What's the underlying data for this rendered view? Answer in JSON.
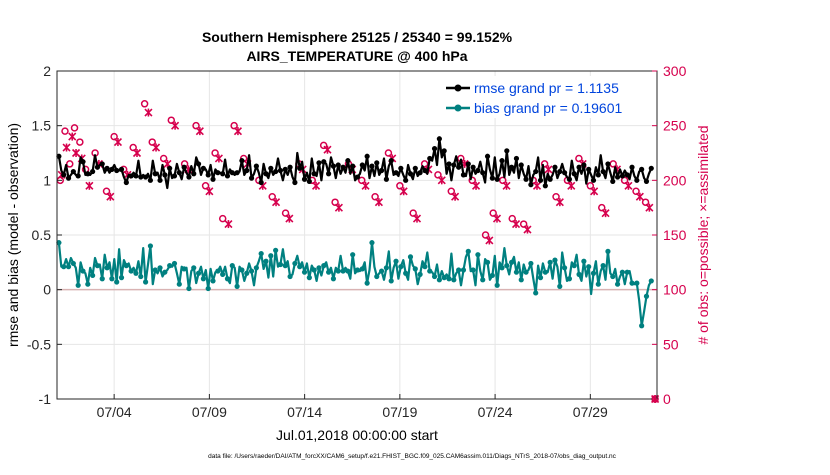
{
  "chart_data": {
    "type": "line",
    "title": "Southern Hemisphere 25125 / 25340 = 99.152%",
    "subtitle": "AIRS_TEMPERATURE @ 400 hPa",
    "xlabel": "Jul.01,2018 00:00:00 start",
    "ylabel_left": "rmse and bias (model - observation)",
    "ylabel_right": "# of obs: o=possible; ×=assimilated",
    "footer": "data file: /Users/raeder/DAI/ATM_forcXX/CAM6_setup/f.e21.FHIST_BGC.f09_025.CAM6assim.011/Diags_NTrS_2018-07/obs_diag_output.nc",
    "x_range": [
      0,
      31.5
    ],
    "x_ticks": [
      {
        "x": 3,
        "label": "07/04"
      },
      {
        "x": 8,
        "label": "07/09"
      },
      {
        "x": 13,
        "label": "07/14"
      },
      {
        "x": 18,
        "label": "07/19"
      },
      {
        "x": 23,
        "label": "07/24"
      },
      {
        "x": 28,
        "label": "07/29"
      }
    ],
    "yleft_range": [
      -1,
      2
    ],
    "yleft_ticks": [
      "-1",
      "-0.5",
      "0",
      "0.5",
      "1",
      "1.5",
      "2"
    ],
    "yright_range": [
      0,
      300
    ],
    "yright_ticks": [
      "0",
      "50",
      "100",
      "150",
      "200",
      "250",
      "300"
    ],
    "grid": true,
    "legend_position": "top-right",
    "colors": {
      "rmse": "#000000",
      "bias": "#008080",
      "obs": "#d6004d",
      "zero_line": "#d9b3b3",
      "grid": "#e6e6e6",
      "legend_text": "#0044dd"
    },
    "series": [
      {
        "name": "rmse grand pr = 1.1135",
        "axis": "left",
        "values": [
          1.22,
          1.09,
          1.05,
          1.14,
          1.02,
          1.05,
          1.08,
          1.05,
          1.04,
          1.21,
          1.17,
          1.05,
          1.06,
          1.05,
          1.08,
          1.23,
          1.12,
          1.14,
          1.15,
          1.07,
          1.11,
          1.07,
          1.1,
          1.14,
          1.09,
          1.09,
          1.1,
          1.03,
          0.98,
          1.05,
          1.04,
          1.07,
          1.04,
          1.18,
          1.03,
          1.05,
          1.03,
          1.06,
          1.0,
          1.18,
          1.06,
          1.07,
          1.0,
          1.14,
          1.05,
          0.93,
          1.11,
          1.02,
          1.04,
          1.15,
          1.07,
          1.01,
          1.12,
          1.07,
          1.03,
          1.13,
          1.06,
          1.21,
          1.15,
          1.05,
          1.11,
          1.1,
          1.05,
          1.14,
          1.01,
          1.1,
          1.07,
          1.07,
          1.06,
          1.19,
          1.04,
          1.1,
          1.07,
          1.05,
          1.07,
          1.08,
          1.18,
          1.05,
          1.09,
          1.23,
          1.02,
          1.06,
          1.13,
          1.07,
          0.98,
          1.15,
          1.06,
          1.02,
          1.11,
          1.05,
          1.08,
          1.2,
          1.09,
          1.0,
          1.1,
          1.05,
          1.12,
          1.03,
          0.98,
          1.25,
          1.11,
          1.17,
          1.01,
          1.07,
          0.99,
          1.2,
          1.06,
          1.04,
          1.16,
          1.0,
          1.17,
          1.15,
          1.06,
          1.21,
          1.13,
          1.02,
          1.14,
          1.06,
          1.12,
          1.07,
          1.18,
          1.06,
          1.13,
          1.0,
          1.03,
          1.06,
          1.14,
          1.09,
          1.22,
          1.02,
          1.13,
          1.04,
          1.16,
          1.05,
          1.09,
          1.2,
          1.01,
          1.13,
          1.18,
          1.05,
          1.07,
          1.04,
          1.11,
          1.05,
          1.0,
          1.14,
          1.06,
          1.01,
          1.11,
          1.04,
          1.07,
          1.13,
          1.09,
          1.06,
          1.2,
          1.18,
          1.29,
          1.14,
          1.38,
          1.21,
          1.27,
          1.06,
          1.15,
          1.0,
          1.14,
          1.22,
          1.12,
          1.19,
          1.05,
          1.04,
          1.15,
          1.01,
          1.12,
          1.06,
          1.09,
          1.17,
          1.07,
          0.98,
          1.22,
          1.1,
          1.02,
          1.21,
          1.01,
          1.06,
          1.18,
          1.03,
          1.27,
          1.05,
          1.12,
          1.07,
          1.2,
          1.02,
          1.14,
          1.06,
          1.01,
          1.13,
          0.96,
          1.05,
          1.08,
          1.21,
          1.0,
          1.14,
          0.95,
          1.06,
          1.01,
          1.05,
          1.12,
          1.02,
          1.08,
          1.15,
          1.07,
          1.03,
          1.01,
          1.18,
          1.06,
          1.0,
          1.12,
          1.06,
          1.14,
          0.97,
          1.1,
          1.05,
          1.0,
          1.12,
          1.05,
          1.23,
          1.08,
          1.02,
          1.15,
          1.07,
          0.99,
          1.12,
          1.03,
          1.1,
          1.04,
          1.09,
          1.05,
          1.01,
          1.12,
          1.04,
          1.0,
          1.08,
          1.1,
          1.02,
          0.99,
          1.06,
          1.11
        ]
      },
      {
        "name": "bias grand pr = 0.19601",
        "axis": "left",
        "values": [
          0.43,
          0.21,
          0.21,
          0.28,
          0.21,
          0.29,
          0.24,
          0.2,
          0.04,
          0.25,
          0.17,
          0.15,
          0.05,
          0.2,
          0.13,
          0.29,
          0.22,
          0.23,
          0.1,
          0.32,
          0.2,
          0.25,
          0.1,
          0.28,
          0.07,
          0.37,
          0.11,
          0.27,
          0.22,
          0.24,
          0.17,
          0.2,
          0.15,
          0.26,
          0.12,
          0.38,
          0.07,
          0.23,
          0.4,
          0.05,
          0.18,
          0.15,
          0.2,
          0.12,
          0.16,
          0.18,
          0.22,
          0.21,
          0.24,
          0.15,
          0.05,
          0.21,
          0.19,
          0.2,
          0.01,
          0.17,
          0.2,
          0.06,
          0.15,
          0.21,
          0.1,
          0.18,
          0.01,
          0.19,
          0.08,
          0.16,
          0.17,
          0.21,
          0.14,
          0.21,
          0.1,
          0.06,
          0.22,
          0.2,
          0.03,
          0.21,
          0.18,
          0.08,
          0.15,
          0.24,
          0.17,
          0.04,
          0.2,
          0.26,
          0.33,
          0.19,
          0.26,
          0.11,
          0.31,
          0.12,
          0.36,
          0.21,
          0.23,
          0.37,
          0.22,
          0.26,
          0.12,
          0.14,
          0.24,
          0.31,
          0.21,
          0.25,
          0.16,
          0.24,
          0.11,
          0.22,
          0.18,
          0.08,
          0.2,
          0.13,
          0.22,
          0.25,
          0.16,
          0.2,
          0.1,
          0.2,
          0.17,
          0.31,
          0.17,
          0.2,
          0.17,
          0.1,
          0.32,
          0.15,
          0.18,
          0.17,
          0.19,
          0.25,
          0.06,
          0.18,
          0.43,
          0.21,
          0.12,
          0.15,
          0.17,
          0.09,
          0.2,
          0.35,
          0.08,
          0.2,
          0.26,
          0.1,
          0.21,
          0.27,
          0.15,
          0.09,
          0.3,
          0.22,
          0.19,
          0.05,
          0.14,
          0.26,
          0.21,
          0.34,
          0.17,
          0.16,
          0.12,
          0.23,
          0.09,
          0.17,
          0.11,
          0.14,
          0.1,
          0.33,
          0.09,
          0.15,
          0.18,
          0.04,
          0.18,
          0.3,
          0.35,
          0.17,
          0.18,
          0.04,
          0.32,
          0.17,
          0.09,
          0.28,
          0.25,
          0.09,
          0.13,
          0.31,
          0.04,
          0.25,
          0.2,
          0.38,
          0.22,
          0.14,
          0.25,
          0.3,
          0.16,
          0.25,
          0.09,
          0.23,
          0.16,
          0.18,
          0.24,
          0.1,
          -0.03,
          0.22,
          0.11,
          0.24,
          0.16,
          0.16,
          0.25,
          0.1,
          0.27,
          0.21,
          0.03,
          0.34,
          0.2,
          0.08,
          0.1,
          0.25,
          0.22,
          0.32,
          0.14,
          0.08,
          0.26,
          0.12,
          0.21,
          -0.04,
          0.15,
          0.26,
          0.05,
          0.17,
          0.22,
          0.09,
          0.35,
          0.15,
          0.12,
          0.19,
          0.05,
          0.12,
          0.16,
          0.05,
          0.16,
          0.17,
          0.06,
          0.05,
          0.06,
          -0.1,
          -0.33,
          -0.2,
          -0.06,
          0.04,
          0.08
        ]
      }
    ],
    "obs_possible": [
      {
        "x": 0.17,
        "y": 200
      },
      {
        "x": 0.42,
        "y": 245
      },
      {
        "x": 0.67,
        "y": 215
      },
      {
        "x": 0.92,
        "y": 248
      },
      {
        "x": 1.2,
        "y": 235
      },
      {
        "x": 1.5,
        "y": 210
      },
      {
        "x": 2.0,
        "y": 225
      },
      {
        "x": 2.6,
        "y": 190
      },
      {
        "x": 3.0,
        "y": 240
      },
      {
        "x": 3.5,
        "y": 210
      },
      {
        "x": 4.0,
        "y": 230
      },
      {
        "x": 4.6,
        "y": 270
      },
      {
        "x": 5.0,
        "y": 235
      },
      {
        "x": 5.6,
        "y": 220
      },
      {
        "x": 6.0,
        "y": 255
      },
      {
        "x": 6.7,
        "y": 215
      },
      {
        "x": 7.3,
        "y": 250
      },
      {
        "x": 7.8,
        "y": 195
      },
      {
        "x": 8.3,
        "y": 225
      },
      {
        "x": 8.7,
        "y": 165
      },
      {
        "x": 9.3,
        "y": 250
      },
      {
        "x": 9.8,
        "y": 220
      },
      {
        "x": 10.6,
        "y": 200
      },
      {
        "x": 11.3,
        "y": 185
      },
      {
        "x": 12.0,
        "y": 170
      },
      {
        "x": 12.7,
        "y": 215
      },
      {
        "x": 13.4,
        "y": 200
      },
      {
        "x": 14.0,
        "y": 232
      },
      {
        "x": 14.6,
        "y": 180
      },
      {
        "x": 15.3,
        "y": 215
      },
      {
        "x": 16.0,
        "y": 200
      },
      {
        "x": 16.7,
        "y": 185
      },
      {
        "x": 17.4,
        "y": 225
      },
      {
        "x": 18.0,
        "y": 195
      },
      {
        "x": 18.7,
        "y": 170
      },
      {
        "x": 19.3,
        "y": 215
      },
      {
        "x": 20.0,
        "y": 205
      },
      {
        "x": 20.7,
        "y": 190
      },
      {
        "x": 21.2,
        "y": 220
      },
      {
        "x": 21.8,
        "y": 200
      },
      {
        "x": 22.5,
        "y": 150
      },
      {
        "x": 22.9,
        "y": 170
      },
      {
        "x": 23.4,
        "y": 200
      },
      {
        "x": 23.9,
        "y": 165
      },
      {
        "x": 24.5,
        "y": 160
      },
      {
        "x": 25.0,
        "y": 200
      },
      {
        "x": 25.6,
        "y": 215
      },
      {
        "x": 26.2,
        "y": 185
      },
      {
        "x": 26.8,
        "y": 200
      },
      {
        "x": 27.4,
        "y": 220
      },
      {
        "x": 28.0,
        "y": 195
      },
      {
        "x": 28.6,
        "y": 175
      },
      {
        "x": 29.2,
        "y": 215
      },
      {
        "x": 29.8,
        "y": 200
      },
      {
        "x": 30.4,
        "y": 190
      },
      {
        "x": 30.9,
        "y": 180
      },
      {
        "x": 31.4,
        "y": 0
      }
    ],
    "obs_assimilated": [
      {
        "x": 0.25,
        "y": 205
      },
      {
        "x": 0.5,
        "y": 230
      },
      {
        "x": 0.8,
        "y": 240
      },
      {
        "x": 1.0,
        "y": 225
      },
      {
        "x": 1.3,
        "y": 220
      },
      {
        "x": 1.7,
        "y": 195
      },
      {
        "x": 2.2,
        "y": 215
      },
      {
        "x": 2.8,
        "y": 185
      },
      {
        "x": 3.2,
        "y": 235
      },
      {
        "x": 3.7,
        "y": 205
      },
      {
        "x": 4.2,
        "y": 225
      },
      {
        "x": 4.8,
        "y": 262
      },
      {
        "x": 5.2,
        "y": 230
      },
      {
        "x": 5.8,
        "y": 215
      },
      {
        "x": 6.2,
        "y": 250
      },
      {
        "x": 6.9,
        "y": 210
      },
      {
        "x": 7.5,
        "y": 245
      },
      {
        "x": 8.0,
        "y": 190
      },
      {
        "x": 8.5,
        "y": 220
      },
      {
        "x": 9.0,
        "y": 160
      },
      {
        "x": 9.5,
        "y": 245
      },
      {
        "x": 10.0,
        "y": 215
      },
      {
        "x": 10.8,
        "y": 195
      },
      {
        "x": 11.5,
        "y": 180
      },
      {
        "x": 12.2,
        "y": 165
      },
      {
        "x": 12.9,
        "y": 210
      },
      {
        "x": 13.6,
        "y": 195
      },
      {
        "x": 14.2,
        "y": 228
      },
      {
        "x": 14.8,
        "y": 175
      },
      {
        "x": 15.5,
        "y": 210
      },
      {
        "x": 16.2,
        "y": 195
      },
      {
        "x": 16.9,
        "y": 180
      },
      {
        "x": 17.6,
        "y": 220
      },
      {
        "x": 18.2,
        "y": 190
      },
      {
        "x": 18.9,
        "y": 165
      },
      {
        "x": 19.5,
        "y": 210
      },
      {
        "x": 20.2,
        "y": 200
      },
      {
        "x": 20.9,
        "y": 185
      },
      {
        "x": 21.4,
        "y": 215
      },
      {
        "x": 22.0,
        "y": 195
      },
      {
        "x": 22.7,
        "y": 145
      },
      {
        "x": 23.1,
        "y": 165
      },
      {
        "x": 23.6,
        "y": 195
      },
      {
        "x": 24.1,
        "y": 160
      },
      {
        "x": 24.7,
        "y": 155
      },
      {
        "x": 25.2,
        "y": 195
      },
      {
        "x": 25.8,
        "y": 210
      },
      {
        "x": 26.4,
        "y": 180
      },
      {
        "x": 27.0,
        "y": 195
      },
      {
        "x": 27.6,
        "y": 215
      },
      {
        "x": 28.2,
        "y": 190
      },
      {
        "x": 28.8,
        "y": 170
      },
      {
        "x": 29.4,
        "y": 210
      },
      {
        "x": 30.0,
        "y": 195
      },
      {
        "x": 30.6,
        "y": 185
      },
      {
        "x": 31.1,
        "y": 175
      },
      {
        "x": 31.4,
        "y": 0
      }
    ]
  }
}
